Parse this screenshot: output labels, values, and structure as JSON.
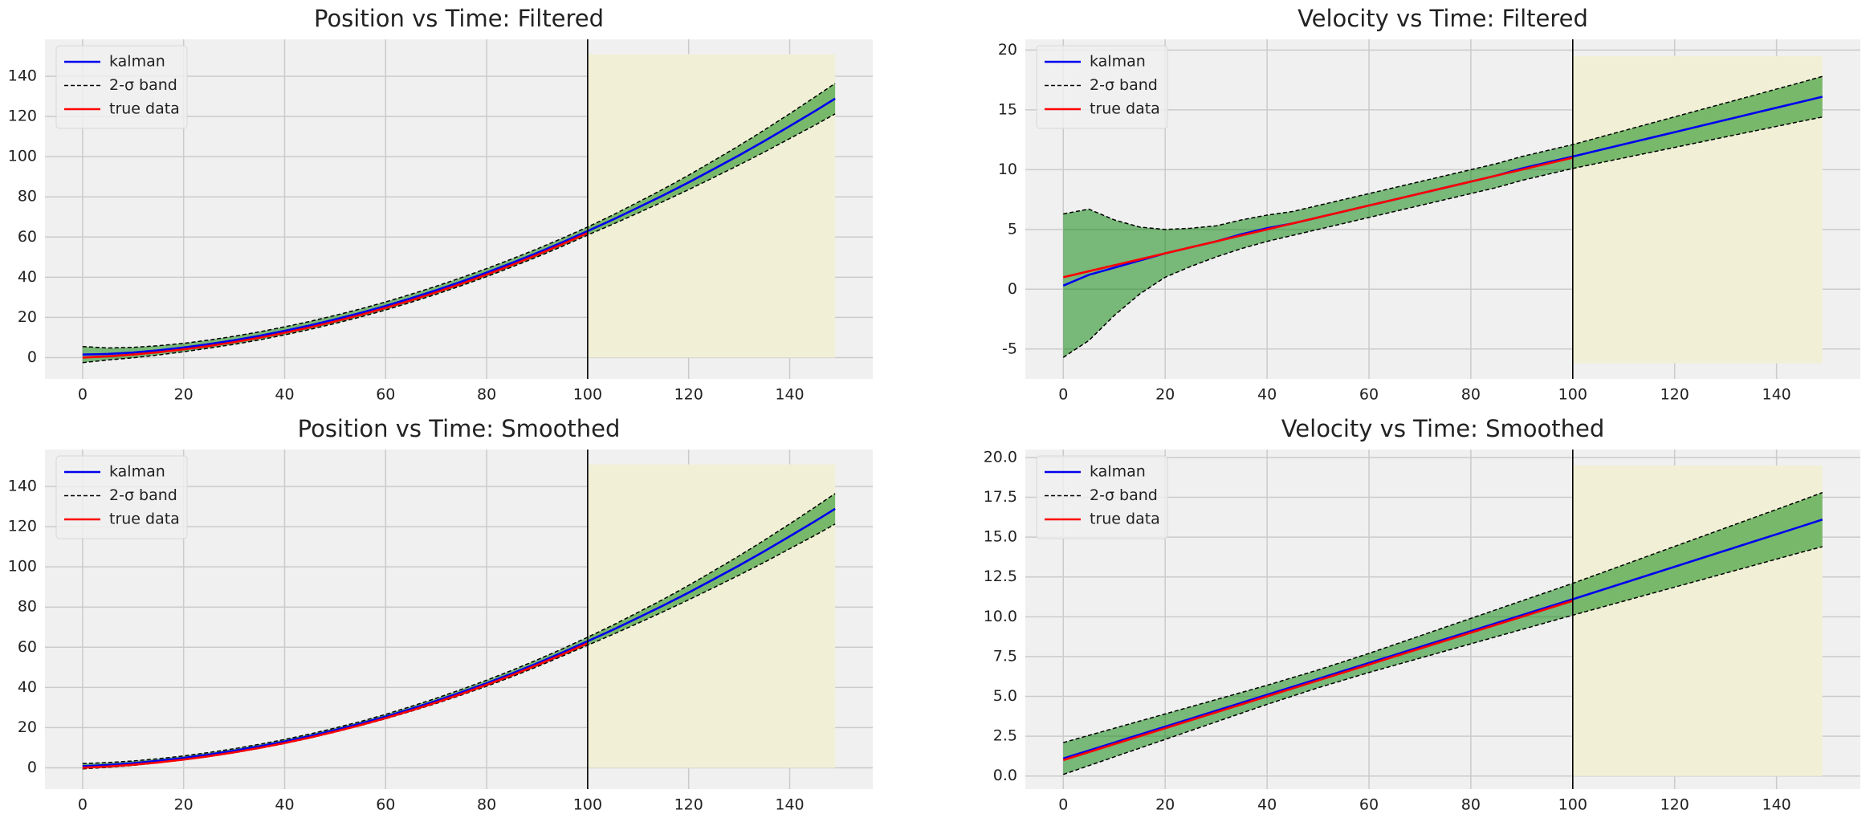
{
  "chart_data": [
    {
      "type": "line",
      "title": "Position vs Time: Filtered",
      "x": [
        0,
        5,
        10,
        15,
        20,
        25,
        30,
        35,
        40,
        45,
        50,
        55,
        60,
        65,
        70,
        75,
        80,
        85,
        90,
        95,
        100,
        105,
        110,
        115,
        120,
        125,
        130,
        135,
        140,
        145,
        149
      ],
      "series": [
        {
          "name": "kalman",
          "color": "#0000ee",
          "values": [
            1.5,
            1.8,
            2.5,
            3.6,
            5.0,
            6.7,
            8.6,
            10.8,
            13.3,
            16.0,
            19.0,
            22.2,
            25.7,
            29.5,
            33.5,
            37.8,
            42.3,
            47.1,
            52.1,
            57.4,
            63.0,
            68.7,
            74.7,
            80.8,
            87.2,
            93.9,
            100.7,
            107.8,
            115.2,
            122.7,
            128.9
          ]
        },
        {
          "name": "2-σ band",
          "color": "#000000",
          "fill": "#008000",
          "upper": [
            5.5,
            4.8,
            5.1,
            5.9,
            7.1,
            8.7,
            10.6,
            12.8,
            15.3,
            18.0,
            21.0,
            24.2,
            27.7,
            31.5,
            35.5,
            39.8,
            44.3,
            49.1,
            54.1,
            59.4,
            65.0,
            71.0,
            77.4,
            83.9,
            90.8,
            98.1,
            105.5,
            113.3,
            121.4,
            129.7,
            136.5
          ],
          "lower": [
            -2.5,
            -1.2,
            -0.1,
            1.3,
            2.9,
            4.7,
            6.6,
            8.8,
            11.3,
            14.0,
            17.0,
            20.2,
            23.7,
            27.5,
            31.5,
            35.8,
            40.3,
            45.1,
            50.1,
            55.4,
            61.0,
            66.4,
            72.0,
            77.7,
            83.6,
            89.7,
            95.9,
            102.3,
            109.0,
            115.7,
            121.3
          ]
        },
        {
          "name": "true data",
          "color": "#ff0000",
          "values": [
            0,
            0.63,
            1.52,
            2.67,
            4.08,
            5.75,
            7.68,
            9.87,
            12.32,
            15.03,
            18.0,
            21.23,
            24.72,
            28.47,
            32.48,
            36.75,
            41.28,
            46.07,
            51.12,
            56.43,
            62.0,
            null,
            null,
            null,
            null,
            null,
            null,
            null,
            null,
            null,
            null
          ]
        }
      ],
      "shade": {
        "x": [
          100,
          149
        ],
        "y": [
          0,
          151
        ],
        "color": "#f1f0d6"
      },
      "vline": 100,
      "xlim": [
        -7.45,
        156.45
      ],
      "xticks": [
        0,
        20,
        40,
        60,
        80,
        100,
        120,
        140
      ],
      "ylim": [
        -10.6,
        158.4
      ],
      "yticks": [
        0,
        20,
        40,
        60,
        80,
        100,
        120,
        140
      ],
      "grid": true,
      "legend": "upper left"
    },
    {
      "type": "line",
      "title": "Velocity vs Time: Filtered",
      "x": [
        0,
        5,
        10,
        15,
        20,
        25,
        30,
        35,
        40,
        45,
        50,
        55,
        60,
        65,
        70,
        75,
        80,
        85,
        90,
        95,
        100,
        105,
        110,
        115,
        120,
        125,
        130,
        135,
        140,
        145,
        149
      ],
      "series": [
        {
          "name": "kalman",
          "color": "#0000ee",
          "values": [
            0.3,
            1.2,
            1.8,
            2.4,
            3.0,
            3.5,
            4.0,
            4.6,
            5.1,
            5.5,
            6.0,
            6.5,
            7.0,
            7.5,
            8.0,
            8.5,
            9.0,
            9.5,
            10.1,
            10.6,
            11.1,
            11.61,
            12.12,
            12.63,
            13.14,
            13.65,
            14.16,
            14.67,
            15.18,
            15.69,
            16.1
          ]
        },
        {
          "name": "2-σ band",
          "color": "#000000",
          "fill": "#008000",
          "upper": [
            6.3,
            6.7,
            5.8,
            5.2,
            5.0,
            5.1,
            5.3,
            5.8,
            6.2,
            6.5,
            7.0,
            7.5,
            8.0,
            8.5,
            9.0,
            9.5,
            10.0,
            10.5,
            11.1,
            11.6,
            12.1,
            12.68,
            13.26,
            13.84,
            14.42,
            15.0,
            15.58,
            16.16,
            16.74,
            17.32,
            17.8
          ],
          "lower": [
            -5.7,
            -4.3,
            -2.2,
            -0.4,
            1.0,
            1.9,
            2.7,
            3.4,
            4.0,
            4.5,
            5.0,
            5.5,
            6.0,
            6.5,
            7.0,
            7.5,
            8.0,
            8.5,
            9.1,
            9.6,
            10.1,
            10.54,
            10.98,
            11.42,
            11.86,
            12.3,
            12.74,
            13.18,
            13.62,
            14.06,
            14.4
          ]
        },
        {
          "name": "true data",
          "color": "#ff0000",
          "values": [
            1,
            1.5,
            2,
            2.5,
            3,
            3.5,
            4,
            4.5,
            5,
            5.5,
            6,
            6.5,
            7,
            7.5,
            8,
            8.5,
            9,
            9.5,
            10,
            10.5,
            11,
            null,
            null,
            null,
            null,
            null,
            null,
            null,
            null,
            null,
            null
          ]
        }
      ],
      "shade": {
        "x": [
          100,
          149
        ],
        "y": [
          -6.2,
          19.5
        ],
        "color": "#f1f0d6"
      },
      "vline": 100,
      "xlim": [
        -7.45,
        156.45
      ],
      "xticks": [
        0,
        20,
        40,
        60,
        80,
        100,
        120,
        140
      ],
      "ylim": [
        -7.5,
        20.9
      ],
      "yticks": [
        -5,
        0,
        5,
        10,
        15,
        20
      ],
      "grid": true,
      "legend": "upper left"
    },
    {
      "type": "line",
      "title": "Position vs Time: Smoothed",
      "x": [
        0,
        5,
        10,
        15,
        20,
        25,
        30,
        35,
        40,
        45,
        50,
        55,
        60,
        65,
        70,
        75,
        80,
        85,
        90,
        95,
        100,
        105,
        110,
        115,
        120,
        125,
        130,
        135,
        140,
        145,
        149
      ],
      "series": [
        {
          "name": "kalman",
          "color": "#0000ee",
          "values": [
            0.8,
            1.4,
            2.3,
            3.5,
            4.9,
            6.6,
            8.5,
            10.7,
            13.1,
            15.8,
            18.8,
            22.0,
            25.5,
            29.3,
            33.3,
            37.6,
            42.1,
            46.9,
            52.0,
            57.4,
            63.0,
            68.7,
            74.7,
            80.8,
            87.2,
            93.9,
            100.7,
            107.8,
            115.2,
            122.7,
            128.9
          ]
        },
        {
          "name": "2-σ band",
          "color": "#000000",
          "fill": "#008000",
          "upper": [
            2.1,
            2.6,
            3.4,
            4.5,
            5.9,
            7.6,
            9.5,
            11.7,
            14.1,
            16.8,
            19.8,
            23.0,
            26.6,
            30.5,
            34.6,
            39.0,
            43.6,
            48.5,
            53.7,
            59.2,
            65.0,
            71.0,
            77.4,
            83.9,
            90.8,
            98.1,
            105.5,
            113.3,
            121.4,
            129.7,
            136.5
          ],
          "lower": [
            -0.5,
            0.2,
            1.2,
            2.5,
            3.9,
            5.6,
            7.5,
            9.7,
            12.1,
            14.8,
            17.8,
            21.0,
            24.4,
            28.1,
            32.0,
            36.2,
            40.6,
            45.3,
            50.3,
            55.6,
            61.0,
            66.4,
            72.0,
            77.7,
            83.6,
            89.7,
            95.9,
            102.3,
            109.0,
            115.7,
            121.3
          ]
        },
        {
          "name": "true data",
          "color": "#ff0000",
          "values": [
            0,
            0.63,
            1.52,
            2.67,
            4.08,
            5.75,
            7.68,
            9.87,
            12.32,
            15.03,
            18.0,
            21.23,
            24.72,
            28.47,
            32.48,
            36.75,
            41.28,
            46.07,
            51.12,
            56.43,
            62.0,
            null,
            null,
            null,
            null,
            null,
            null,
            null,
            null,
            null,
            null
          ]
        }
      ],
      "shade": {
        "x": [
          100,
          149
        ],
        "y": [
          0,
          151
        ],
        "color": "#f1f0d6"
      },
      "vline": 100,
      "xlim": [
        -7.45,
        156.45
      ],
      "xticks": [
        0,
        20,
        40,
        60,
        80,
        100,
        120,
        140
      ],
      "ylim": [
        -10.6,
        158.4
      ],
      "yticks": [
        0,
        20,
        40,
        60,
        80,
        100,
        120,
        140
      ],
      "grid": true,
      "legend": "upper left"
    },
    {
      "type": "line",
      "title": "Velocity vs Time: Smoothed",
      "x": [
        0,
        5,
        10,
        15,
        20,
        25,
        30,
        35,
        40,
        45,
        50,
        55,
        60,
        65,
        70,
        75,
        80,
        85,
        90,
        95,
        100,
        105,
        110,
        115,
        120,
        125,
        130,
        135,
        140,
        145,
        149
      ],
      "series": [
        {
          "name": "kalman",
          "color": "#0000ee",
          "values": [
            1.1,
            1.6,
            2.1,
            2.6,
            3.1,
            3.6,
            4.1,
            4.6,
            5.1,
            5.6,
            6.1,
            6.6,
            7.1,
            7.6,
            8.1,
            8.6,
            9.1,
            9.6,
            10.1,
            10.6,
            11.1,
            11.61,
            12.12,
            12.63,
            13.14,
            13.65,
            14.16,
            14.67,
            15.18,
            15.69,
            16.1
          ]
        },
        {
          "name": "2-σ band",
          "color": "#000000",
          "fill": "#008000",
          "upper": [
            2.1,
            2.55,
            3.0,
            3.45,
            3.9,
            4.35,
            4.8,
            5.25,
            5.7,
            6.18,
            6.66,
            7.18,
            7.7,
            8.25,
            8.8,
            9.35,
            9.9,
            10.45,
            11.0,
            11.55,
            12.1,
            12.68,
            13.26,
            13.84,
            14.42,
            15.0,
            15.58,
            16.16,
            16.74,
            17.32,
            17.8
          ],
          "lower": [
            0.1,
            0.65,
            1.2,
            1.75,
            2.3,
            2.85,
            3.4,
            3.95,
            4.5,
            5.02,
            5.54,
            6.02,
            6.5,
            6.95,
            7.4,
            7.85,
            8.3,
            8.75,
            9.2,
            9.65,
            10.1,
            10.54,
            10.98,
            11.42,
            11.86,
            12.3,
            12.74,
            13.18,
            13.62,
            14.06,
            14.4
          ]
        },
        {
          "name": "true data",
          "color": "#ff0000",
          "values": [
            1,
            1.5,
            2,
            2.5,
            3,
            3.5,
            4,
            4.5,
            5,
            5.5,
            6,
            6.5,
            7,
            7.5,
            8,
            8.5,
            9,
            9.5,
            10,
            10.5,
            11,
            null,
            null,
            null,
            null,
            null,
            null,
            null,
            null,
            null,
            null
          ]
        }
      ],
      "shade": {
        "x": [
          100,
          149
        ],
        "y": [
          0,
          19.5
        ],
        "color": "#f1f0d6"
      },
      "vline": 100,
      "xlim": [
        -7.45,
        156.45
      ],
      "xticks": [
        0,
        20,
        40,
        60,
        80,
        100,
        120,
        140
      ],
      "ylim": [
        -0.82,
        20.5
      ],
      "yticks": [
        {
          "value": 0,
          "label": "0.0"
        },
        {
          "value": 2.5,
          "label": "2.5"
        },
        {
          "value": 5,
          "label": "5.0"
        },
        {
          "value": 7.5,
          "label": "7.5"
        },
        {
          "value": 10,
          "label": "10.0"
        },
        {
          "value": 12.5,
          "label": "12.5"
        },
        {
          "value": 15,
          "label": "15.0"
        },
        {
          "value": 17.5,
          "label": "17.5"
        },
        {
          "value": 20,
          "label": "20.0"
        }
      ],
      "grid": true,
      "legend": "upper left"
    }
  ]
}
